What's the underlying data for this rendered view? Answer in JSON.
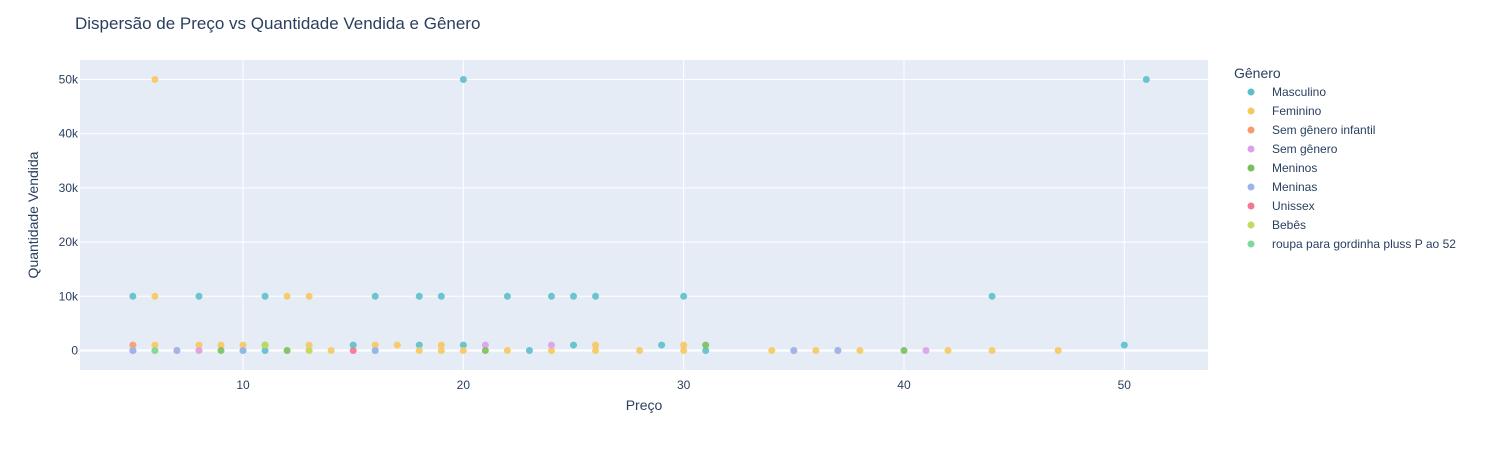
{
  "chart_data": {
    "type": "scatter",
    "title": "Dispersão de Preço vs Quantidade Vendida e Gênero",
    "xlabel": "Preço",
    "ylabel": "Quantidade Vendida",
    "xlim": [
      2.6,
      53.8
    ],
    "ylim": [
      -3600,
      53600
    ],
    "x_ticks": [
      10,
      20,
      30,
      40,
      50
    ],
    "y_ticks": [
      0,
      10000,
      20000,
      30000,
      40000,
      50000
    ],
    "y_tick_labels": [
      "0",
      "10k",
      "20k",
      "30k",
      "40k",
      "50k"
    ],
    "grid": true,
    "legend_title": "Gênero",
    "legend_position": "right",
    "series": [
      {
        "name": "Masculino",
        "color": "#5BC0CC",
        "points": [
          [
            5,
            10000
          ],
          [
            5,
            0
          ],
          [
            8,
            10000
          ],
          [
            10,
            0
          ],
          [
            11,
            10000
          ],
          [
            11,
            0
          ],
          [
            15,
            1000
          ],
          [
            16,
            10000
          ],
          [
            16,
            0
          ],
          [
            18,
            10000
          ],
          [
            18,
            1000
          ],
          [
            19,
            10000
          ],
          [
            20,
            50000
          ],
          [
            20,
            1000
          ],
          [
            22,
            10000
          ],
          [
            23,
            0
          ],
          [
            24,
            10000
          ],
          [
            25,
            10000
          ],
          [
            25,
            1000
          ],
          [
            26,
            10000
          ],
          [
            29,
            1000
          ],
          [
            30,
            10000
          ],
          [
            31,
            0
          ],
          [
            44,
            10000
          ],
          [
            50,
            1000
          ],
          [
            51,
            50000
          ]
        ]
      },
      {
        "name": "Feminino",
        "color": "#F7C85F",
        "points": [
          [
            6,
            50000
          ],
          [
            6,
            10000
          ],
          [
            6,
            1000
          ],
          [
            6,
            0
          ],
          [
            8,
            1000
          ],
          [
            8,
            0
          ],
          [
            9,
            1000
          ],
          [
            10,
            1000
          ],
          [
            12,
            10000
          ],
          [
            13,
            10000
          ],
          [
            13,
            1000
          ],
          [
            13,
            0
          ],
          [
            14,
            0
          ],
          [
            16,
            1000
          ],
          [
            17,
            1000
          ],
          [
            18,
            0
          ],
          [
            19,
            1000
          ],
          [
            19,
            0
          ],
          [
            20,
            0
          ],
          [
            22,
            0
          ],
          [
            24,
            0
          ],
          [
            26,
            1000
          ],
          [
            26,
            0
          ],
          [
            28,
            0
          ],
          [
            30,
            1000
          ],
          [
            30,
            0
          ],
          [
            34,
            0
          ],
          [
            36,
            0
          ],
          [
            38,
            0
          ],
          [
            42,
            0
          ],
          [
            44,
            0
          ],
          [
            47,
            0
          ]
        ]
      },
      {
        "name": "Sem gênero infantil",
        "color": "#F89B6C",
        "points": [
          [
            5,
            1000
          ]
        ]
      },
      {
        "name": "Sem gênero",
        "color": "#DDA0EB",
        "points": [
          [
            5,
            0
          ],
          [
            7,
            0
          ],
          [
            8,
            0
          ],
          [
            21,
            1000
          ],
          [
            24,
            1000
          ],
          [
            35,
            0
          ],
          [
            37,
            0
          ],
          [
            41,
            0
          ]
        ]
      },
      {
        "name": "Meninos",
        "color": "#7BBF5B",
        "points": [
          [
            9,
            0
          ],
          [
            11,
            1000
          ],
          [
            12,
            0
          ],
          [
            21,
            0
          ],
          [
            31,
            1000
          ],
          [
            40,
            0
          ]
        ]
      },
      {
        "name": "Meninas",
        "color": "#9DB5E8",
        "points": [
          [
            5,
            0
          ],
          [
            7,
            0
          ],
          [
            10,
            0
          ],
          [
            16,
            0
          ],
          [
            35,
            0
          ],
          [
            37,
            0
          ]
        ]
      },
      {
        "name": "Unissex",
        "color": "#F2788F",
        "points": [
          [
            15,
            0
          ]
        ]
      },
      {
        "name": "Bebês",
        "color": "#C5D960",
        "points": [
          [
            11,
            1000
          ],
          [
            13,
            0
          ]
        ]
      },
      {
        "name": "roupa para gordinha pluss P ao 52",
        "color": "#7DD99C",
        "points": [
          [
            6,
            0
          ]
        ]
      }
    ]
  }
}
